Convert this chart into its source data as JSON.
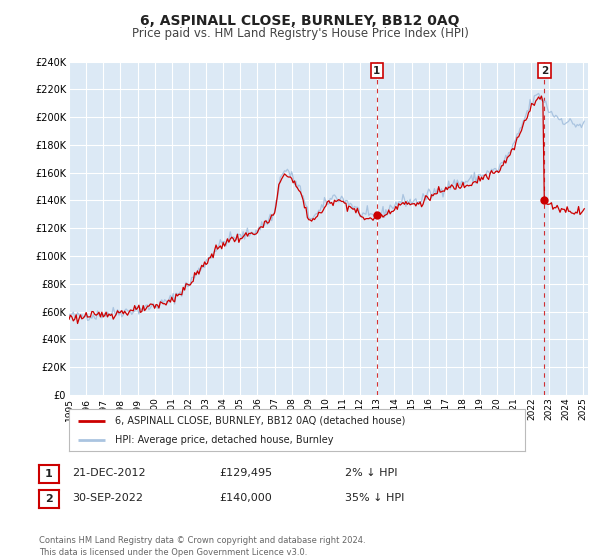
{
  "title": "6, ASPINALL CLOSE, BURNLEY, BB12 0AQ",
  "subtitle": "Price paid vs. HM Land Registry's House Price Index (HPI)",
  "ylim": [
    0,
    240000
  ],
  "ytick_values": [
    0,
    20000,
    40000,
    60000,
    80000,
    100000,
    120000,
    140000,
    160000,
    180000,
    200000,
    220000,
    240000
  ],
  "ytick_labels": [
    "£0",
    "£20K",
    "£40K",
    "£60K",
    "£80K",
    "£100K",
    "£120K",
    "£140K",
    "£160K",
    "£180K",
    "£200K",
    "£220K",
    "£240K"
  ],
  "xlim_start": 1995.0,
  "xlim_end": 2025.3,
  "xtick_years": [
    1995,
    1996,
    1997,
    1998,
    1999,
    2000,
    2001,
    2002,
    2003,
    2004,
    2005,
    2006,
    2007,
    2008,
    2009,
    2010,
    2011,
    2012,
    2013,
    2014,
    2015,
    2016,
    2017,
    2018,
    2019,
    2020,
    2021,
    2022,
    2023,
    2024,
    2025
  ],
  "hpi_color": "#aac4e0",
  "price_color": "#cc0000",
  "point1_date_num": 2012.97,
  "point1_value": 129495,
  "point2_date_num": 2022.75,
  "point2_value": 140000,
  "vline1_x": 2012.97,
  "vline2_x": 2022.75,
  "legend_entry1": "6, ASPINALL CLOSE, BURNLEY, BB12 0AQ (detached house)",
  "legend_entry2": "HPI: Average price, detached house, Burnley",
  "annotation1_date": "21-DEC-2012",
  "annotation1_price": "£129,495",
  "annotation1_hpi": "2% ↓ HPI",
  "annotation2_date": "30-SEP-2022",
  "annotation2_price": "£140,000",
  "annotation2_hpi": "35% ↓ HPI",
  "footer": "Contains HM Land Registry data © Crown copyright and database right 2024.\nThis data is licensed under the Open Government Licence v3.0.",
  "bg_color": "#ffffff",
  "plot_bg_color": "#dce9f5",
  "grid_color": "#ffffff",
  "label_box_color": "#cc0000"
}
